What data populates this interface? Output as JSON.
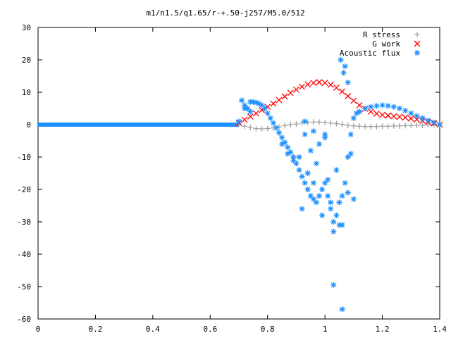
{
  "chart_data": {
    "type": "scatter",
    "title": "m1/n1.5/q1.65/r-+.50-j257/M5.0/512",
    "xlabel": "",
    "ylabel": "",
    "xlim": [
      0,
      1.4
    ],
    "ylim": [
      -60,
      30
    ],
    "x_ticks": [
      "0",
      "0.2",
      "0.4",
      "0.6",
      "0.8",
      "1",
      "1.2",
      "1.4"
    ],
    "y_ticks": [
      "30",
      "20",
      "10",
      "0",
      "-10",
      "-20",
      "-30",
      "-40",
      "-50",
      "-60"
    ],
    "grid": false,
    "legend_position": "top-right",
    "series": [
      {
        "name": "R stress",
        "marker": "plus",
        "color": "#a0a0a0",
        "x": [
          0.7,
          0.72,
          0.74,
          0.76,
          0.78,
          0.8,
          0.82,
          0.84,
          0.86,
          0.88,
          0.9,
          0.92,
          0.94,
          0.96,
          0.98,
          1.0,
          1.02,
          1.04,
          1.06,
          1.08,
          1.1,
          1.12,
          1.14,
          1.16,
          1.18,
          1.2,
          1.22,
          1.24,
          1.26,
          1.28,
          1.3,
          1.32,
          1.34,
          1.36,
          1.38,
          1.4
        ],
        "y": [
          0.2,
          -0.5,
          -0.9,
          -1.2,
          -1.3,
          -1.2,
          -1.0,
          -0.7,
          -0.3,
          0.0,
          0.2,
          0.5,
          0.7,
          0.8,
          0.8,
          0.7,
          0.5,
          0.3,
          0.1,
          -0.2,
          -0.4,
          -0.5,
          -0.6,
          -0.6,
          -0.6,
          -0.5,
          -0.5,
          -0.4,
          -0.4,
          -0.3,
          -0.3,
          -0.2,
          -0.2,
          -0.1,
          -0.1,
          0.0
        ]
      },
      {
        "name": "G work",
        "marker": "cross",
        "color": "#ff0000",
        "x": [
          0.7,
          0.72,
          0.74,
          0.76,
          0.78,
          0.8,
          0.82,
          0.84,
          0.86,
          0.88,
          0.9,
          0.92,
          0.94,
          0.96,
          0.98,
          1.0,
          1.02,
          1.04,
          1.06,
          1.08,
          1.1,
          1.12,
          1.14,
          1.16,
          1.18,
          1.2,
          1.22,
          1.24,
          1.26,
          1.28,
          1.3,
          1.32,
          1.34,
          1.36,
          1.38,
          1.4
        ],
        "y": [
          0.5,
          1.5,
          2.5,
          3.5,
          4.5,
          5.5,
          6.5,
          7.6,
          8.7,
          9.8,
          10.8,
          11.7,
          12.4,
          12.9,
          13.1,
          12.9,
          12.3,
          11.4,
          10.2,
          8.8,
          7.4,
          6.0,
          4.9,
          4.0,
          3.4,
          3.0,
          2.8,
          2.6,
          2.4,
          2.2,
          1.9,
          1.6,
          1.2,
          0.8,
          0.4,
          0.0
        ]
      },
      {
        "name": "Acoustic flux",
        "marker": "star",
        "color": "#1e90ff",
        "x": [
          0.7,
          0.71,
          0.72,
          0.73,
          0.74,
          0.75,
          0.76,
          0.77,
          0.78,
          0.79,
          0.8,
          0.81,
          0.82,
          0.83,
          0.84,
          0.85,
          0.86,
          0.87,
          0.88,
          0.89,
          0.9,
          0.91,
          0.92,
          0.93,
          0.94,
          0.95,
          0.96,
          0.97,
          0.98,
          0.99,
          1.0,
          1.01,
          1.02,
          1.03,
          1.04,
          1.05,
          1.06,
          1.07,
          1.08,
          1.09,
          1.1,
          1.11,
          1.12,
          1.14,
          1.16,
          1.18,
          1.2,
          1.22,
          1.24,
          1.26,
          1.28,
          1.3,
          1.32,
          1.34,
          1.36,
          1.38,
          1.4,
          0.72,
          0.74,
          0.85,
          0.87,
          0.89,
          0.91,
          0.92,
          0.93,
          0.94,
          0.95,
          0.96,
          0.97,
          0.98,
          0.99,
          1.0,
          1.01,
          1.02,
          1.03,
          1.04,
          1.05,
          1.055,
          1.06,
          1.065,
          1.07,
          1.08,
          1.09,
          1.1,
          0.93,
          0.96,
          1.0,
          1.03,
          1.06,
          1.08,
          1.12
        ],
        "y": [
          1.0,
          7.5,
          6.0,
          5.0,
          7.0,
          7.0,
          6.8,
          6.5,
          6.0,
          5.0,
          3.5,
          2.0,
          0.5,
          -1.0,
          -2.5,
          -4.0,
          -5.5,
          -7.0,
          -8.5,
          -10.0,
          -12.0,
          -14.0,
          -16.0,
          -18.0,
          -20.0,
          -22.0,
          -23.0,
          -24.0,
          -22.0,
          -20.0,
          -18.0,
          -22.0,
          -26.0,
          -30.0,
          -28.0,
          -24.0,
          -22.0,
          -18.0,
          -10.0,
          -3.0,
          2.0,
          3.5,
          4.0,
          5.0,
          5.5,
          5.8,
          6.0,
          5.8,
          5.5,
          5.0,
          4.3,
          3.5,
          2.7,
          2.0,
          1.3,
          0.7,
          0.0,
          5.0,
          4.0,
          -6.0,
          -9.0,
          -11.0,
          -10.0,
          -26.0,
          -3.0,
          -15.0,
          -8.0,
          -18.0,
          -12.0,
          -6.0,
          -28.0,
          -4.0,
          -17.0,
          -24.0,
          -33.0,
          -14.0,
          -31.0,
          20.0,
          -57.0,
          16.0,
          18.0,
          -21.0,
          -9.0,
          -23.0,
          1.0,
          -2.0,
          -3.0,
          -49.5,
          -31.0,
          13.0,
          4.0
        ]
      }
    ]
  }
}
